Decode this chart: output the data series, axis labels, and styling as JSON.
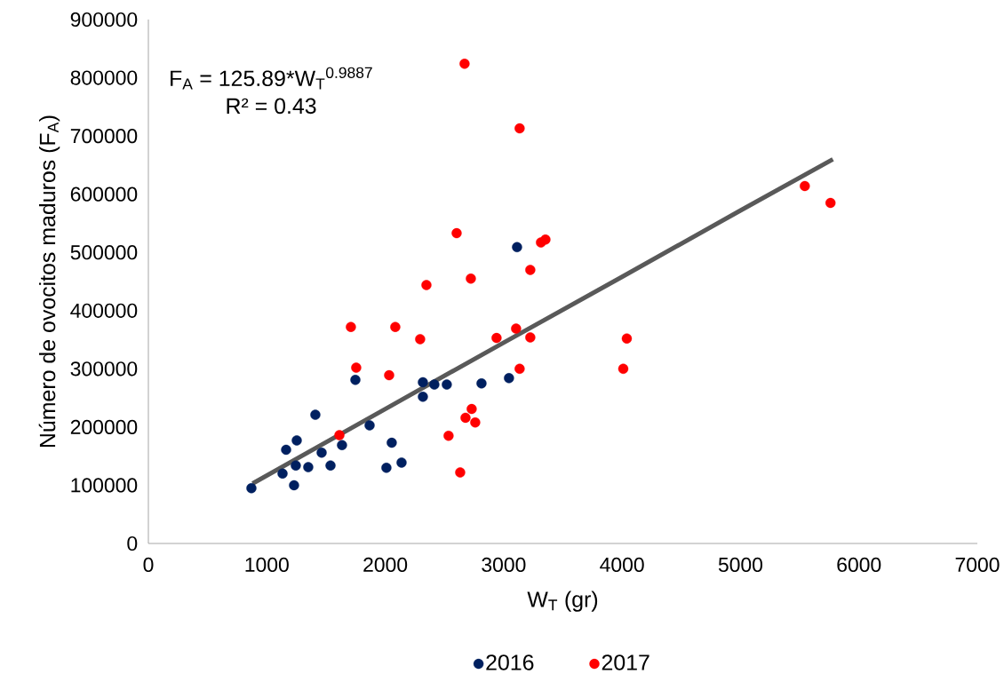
{
  "chart_data": {
    "type": "scatter",
    "xlabel": "W$_{T}$ (gr)",
    "ylabel": "Número de ovocitos maduros (F$_{A}$)",
    "annotations": [
      "F$_{A}$ = 125.89*W$_{T}$$^{0.9887}$",
      "R² = 0.43"
    ],
    "xlim": [
      0,
      7000
    ],
    "ylim": [
      0,
      900000
    ],
    "xticks": [
      0,
      1000,
      2000,
      3000,
      4000,
      5000,
      6000,
      7000
    ],
    "yticks": [
      0,
      100000,
      200000,
      300000,
      400000,
      500000,
      600000,
      700000,
      800000,
      900000
    ],
    "grid": false,
    "legend": "bottom",
    "series": [
      {
        "name": "2016",
        "color": "#002060",
        "marker": "circle",
        "x": [
          870,
          1133,
          1163,
          1253,
          1245,
          1230,
          1350,
          1463,
          1538,
          1410,
          1635,
          1868,
          1748,
          2055,
          2010,
          2138,
          2318,
          2318,
          2415,
          2520,
          2813,
          3045,
          3113
        ],
        "values": [
          95000,
          120000,
          161000,
          177000,
          134000,
          100000,
          131000,
          156000,
          134000,
          221000,
          169000,
          203000,
          281000,
          173000,
          130000,
          139000,
          277000,
          252000,
          273000,
          273000,
          275000,
          284000,
          509000
        ]
      },
      {
        "name": "2017",
        "color": "#ff0000",
        "marker": "circle",
        "x": [
          1710,
          2085,
          2295,
          1755,
          2033,
          1613,
          2940,
          3105,
          3225,
          3135,
          2730,
          2678,
          2760,
          2535,
          2633,
          2670,
          3135,
          2603,
          3315,
          3353,
          3225,
          2723,
          2348,
          4040,
          4010,
          5543,
          5760
        ],
        "values": [
          372000,
          372000,
          351000,
          302000,
          289000,
          186000,
          353000,
          369000,
          354000,
          300000,
          231000,
          216000,
          208000,
          185000,
          122000,
          824000,
          713000,
          533000,
          517000,
          522000,
          470000,
          455000,
          444000,
          352000,
          300000,
          614000,
          585000
        ]
      },
      {
        "type": "line",
        "color": "#595959",
        "marker": "none",
        "x": [
          880,
          2000,
          3000,
          4000,
          5000,
          5780
        ],
        "values": [
          103000,
          231000,
          345000,
          458000,
          572000,
          660000
        ]
      }
    ]
  }
}
